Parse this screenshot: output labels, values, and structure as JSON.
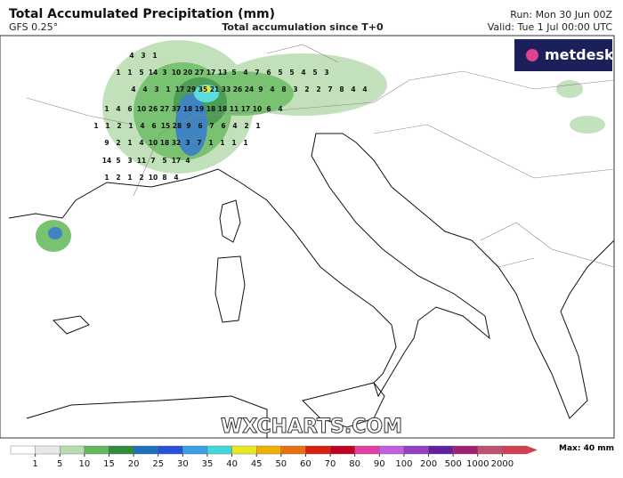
{
  "header": {
    "title": "Total Accumulated Precipitation (mm)",
    "model": "GFS 0.25°",
    "subtitle": "Total accumulation since T+0",
    "run": "Run: Mon 30 Jun 00Z",
    "valid": "Valid: Tue 1 Jul 00:00 UTC",
    "logo": "metdesk"
  },
  "map": {
    "watermark": "WXCHARTS.COM",
    "point_rows": [
      [
        4,
        3,
        1
      ],
      [
        1,
        1,
        5,
        14,
        3,
        10,
        20,
        27,
        17,
        13,
        5,
        4,
        7,
        6,
        5,
        5,
        4,
        5,
        3
      ],
      [
        4,
        4,
        3,
        1,
        17,
        29,
        35,
        21,
        33,
        26,
        24,
        9,
        4,
        8,
        3,
        2,
        2,
        7,
        8,
        4,
        4
      ],
      [
        1,
        4,
        6,
        10,
        26,
        27,
        37,
        18,
        19,
        18,
        18,
        11,
        17,
        10,
        6,
        4
      ],
      [
        1,
        1,
        2,
        1,
        4,
        6,
        15,
        28,
        9,
        6,
        7,
        6,
        4,
        2,
        1
      ],
      [
        9,
        2,
        1,
        4,
        10,
        18,
        32,
        3,
        7,
        1,
        1,
        1,
        1
      ],
      [
        14,
        5,
        3,
        11,
        7,
        5,
        17,
        4
      ],
      [
        1,
        2,
        1,
        2,
        10,
        8,
        4
      ]
    ]
  },
  "legend": {
    "ticks": [
      1,
      5,
      10,
      15,
      20,
      25,
      30,
      35,
      40,
      45,
      50,
      60,
      70,
      80,
      90,
      100,
      200,
      500,
      1000,
      2000
    ],
    "max": "Max: 40 mm",
    "colors": [
      "#ffffff",
      "#e8e8e8",
      "#b8dcb0",
      "#62b85a",
      "#2e8c3a",
      "#1f6fb8",
      "#2950d8",
      "#3aa0e8",
      "#40d8d8",
      "#e8e820",
      "#f0b000",
      "#e87010",
      "#d82010",
      "#c00020",
      "#e040a0",
      "#c060e0",
      "#9040c0",
      "#6020a0",
      "#a02070",
      "#c05070",
      "#d04050"
    ]
  }
}
